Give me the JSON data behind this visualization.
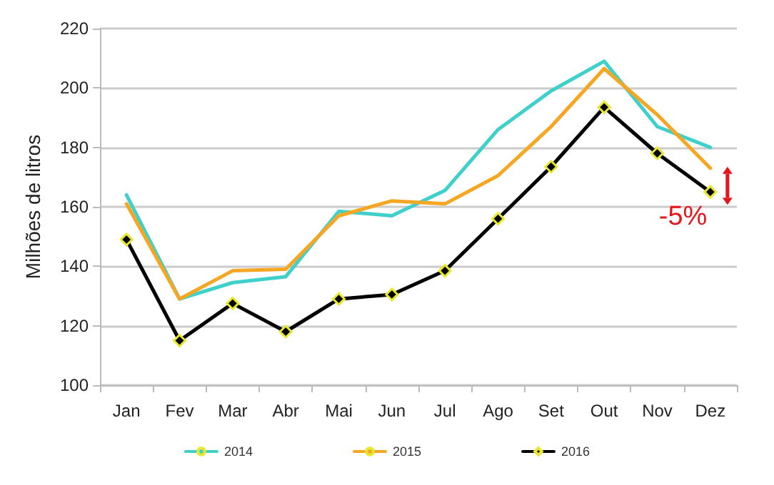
{
  "chart_data": {
    "type": "line",
    "ylabel": "Milhões de litros",
    "categories": [
      "Jan",
      "Fev",
      "Mar",
      "Abr",
      "Mai",
      "Jun",
      "Jul",
      "Ago",
      "Set",
      "Out",
      "Nov",
      "Dez"
    ],
    "series": [
      {
        "name": "2014",
        "color": "#40d0cc",
        "values": [
          164,
          129,
          134.5,
          136.5,
          158.5,
          157,
          165.5,
          186,
          199,
          209,
          187,
          180
        ]
      },
      {
        "name": "2015",
        "color": "#f5a623",
        "values": [
          161,
          129,
          138.5,
          139,
          157,
          162,
          161,
          170.5,
          187,
          206.5,
          191,
          173
        ]
      },
      {
        "name": "2016",
        "color": "#000000",
        "marker": "diamond",
        "values": [
          149,
          115,
          127.5,
          118,
          129,
          130.5,
          138.5,
          156,
          173.5,
          193.5,
          178,
          165
        ]
      }
    ],
    "ylim": [
      100,
      220
    ],
    "yticks": [
      100,
      120,
      140,
      160,
      180,
      200,
      220
    ],
    "grid": "y",
    "legend": "bottom",
    "annotations": [
      {
        "text": "-5%",
        "x": "Dez",
        "y": 165
      }
    ]
  }
}
